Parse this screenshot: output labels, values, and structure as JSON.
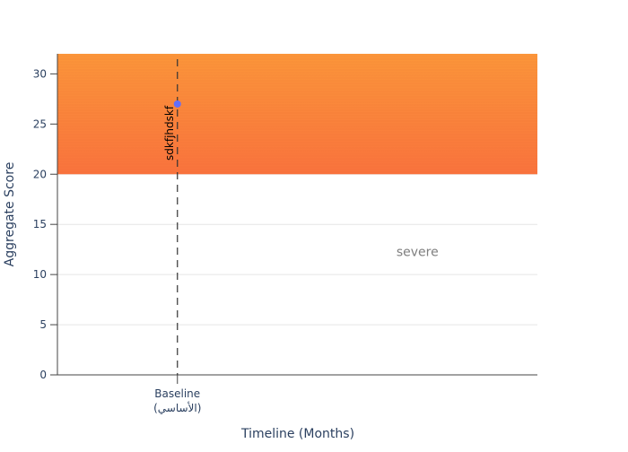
{
  "chart_data": {
    "type": "scatter",
    "title": "",
    "xlabel": "Timeline (Months)",
    "ylabel": "Aggregate Score",
    "ylim": [
      0,
      32
    ],
    "yticks": [
      0,
      5,
      10,
      15,
      20,
      25,
      30
    ],
    "grid": "horizontal",
    "x_categories": [
      {
        "value": 0,
        "label_line1": "Baseline",
        "label_line2": "(الأساسي)"
      }
    ],
    "xlim": [
      -1,
      3
    ],
    "series": [
      {
        "x": 0,
        "y": 27
      }
    ],
    "band": {
      "y0": 20,
      "y1": 32,
      "color_top": "#fb963a",
      "color_bottom": "#f9733d"
    },
    "vline": {
      "x": 0,
      "label": "sdkfjhdskf"
    },
    "annotations": [
      {
        "text": "severe",
        "x": 2.0,
        "y": 12.3
      }
    ],
    "colors": {
      "marker": "#636efa",
      "axis_text": "#2a3f5f",
      "grid": "#e5e5e5",
      "annotation": "#7f7f7f"
    }
  }
}
